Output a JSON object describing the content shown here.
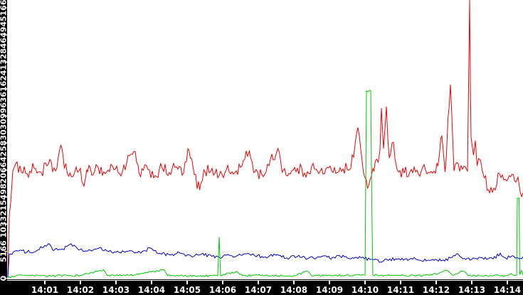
{
  "chart_data": {
    "type": "line",
    "title": "",
    "xlabel": "",
    "ylabel": "",
    "grid": false,
    "legend": "none",
    "x_ticks": [
      "14:01",
      "14:02",
      "14:03",
      "14:04",
      "14:05",
      "14:06",
      "14:07",
      "14:08",
      "14:09",
      "14:10",
      "14:11",
      "14:12",
      "14:13",
      "14:14"
    ],
    "y_ticks": [
      0,
      5166,
      10332,
      15498,
      20664,
      25830,
      30996,
      36162,
      41328,
      46494,
      51661
    ],
    "y_max": 51661,
    "x_range_minutes_after_1400": [
      -0.04,
      14.44
    ],
    "colors": {
      "window_background": "#000000",
      "plot_background": "#ffffff",
      "axis_line": "#000000",
      "tick_mark": "#ffffff",
      "tick_label": "#ffffff",
      "series_red": "#f00000",
      "series_blue": "#0000d0",
      "series_green": "#00c800"
    },
    "series": [
      {
        "name": "red-series",
        "color": "#f00000",
        "noise": 1200,
        "points": [
          [
            -0.04,
            300
          ],
          [
            0.0,
            12000
          ],
          [
            0.1,
            20500
          ],
          [
            0.3,
            21500
          ],
          [
            0.5,
            20000
          ],
          [
            0.7,
            21000
          ],
          [
            0.9,
            20200
          ],
          [
            1.1,
            21800
          ],
          [
            1.3,
            20500
          ],
          [
            1.45,
            25400
          ],
          [
            1.55,
            21000
          ],
          [
            1.8,
            19500
          ],
          [
            2.0,
            21000
          ],
          [
            2.1,
            17600
          ],
          [
            2.2,
            20300
          ],
          [
            2.5,
            21200
          ],
          [
            2.7,
            20000
          ],
          [
            2.9,
            21500
          ],
          [
            3.1,
            20000
          ],
          [
            3.3,
            22000
          ],
          [
            3.5,
            24200
          ],
          [
            3.65,
            20000
          ],
          [
            3.9,
            20800
          ],
          [
            4.1,
            19600
          ],
          [
            4.3,
            21000
          ],
          [
            4.5,
            20200
          ],
          [
            4.7,
            21300
          ],
          [
            4.9,
            20100
          ],
          [
            5.05,
            24500
          ],
          [
            5.2,
            19800
          ],
          [
            5.35,
            16900
          ],
          [
            5.5,
            20400
          ],
          [
            5.7,
            21000
          ],
          [
            5.9,
            19600
          ],
          [
            6.1,
            20700
          ],
          [
            6.3,
            19900
          ],
          [
            6.5,
            21200
          ],
          [
            6.75,
            24300
          ],
          [
            6.9,
            20300
          ],
          [
            7.1,
            19800
          ],
          [
            7.3,
            21500
          ],
          [
            7.55,
            24800
          ],
          [
            7.7,
            20600
          ],
          [
            7.9,
            19900
          ],
          [
            8.1,
            21000
          ],
          [
            8.3,
            20100
          ],
          [
            8.5,
            21400
          ],
          [
            8.7,
            20000
          ],
          [
            8.9,
            20900
          ],
          [
            9.1,
            20200
          ],
          [
            9.3,
            21100
          ],
          [
            9.6,
            21000
          ],
          [
            9.8,
            28800
          ],
          [
            9.95,
            20500
          ],
          [
            10.1,
            17600
          ],
          [
            10.25,
            20500
          ],
          [
            10.42,
            24500
          ],
          [
            10.46,
            32500
          ],
          [
            10.52,
            24800
          ],
          [
            10.6,
            32800
          ],
          [
            10.68,
            23000
          ],
          [
            10.8,
            26000
          ],
          [
            10.9,
            20800
          ],
          [
            11.1,
            20100
          ],
          [
            11.3,
            20800
          ],
          [
            11.5,
            19900
          ],
          [
            11.7,
            20700
          ],
          [
            11.9,
            20100
          ],
          [
            12.05,
            21500
          ],
          [
            12.16,
            27200
          ],
          [
            12.25,
            20300
          ],
          [
            12.4,
            37000
          ],
          [
            12.5,
            20500
          ],
          [
            12.7,
            21500
          ],
          [
            12.88,
            20400
          ],
          [
            12.94,
            53200
          ],
          [
            12.96,
            37500
          ],
          [
            12.98,
            27000
          ],
          [
            13.05,
            23500
          ],
          [
            13.1,
            26300
          ],
          [
            13.15,
            21500
          ],
          [
            13.25,
            22500
          ],
          [
            13.35,
            19200
          ],
          [
            13.5,
            16300
          ],
          [
            13.62,
            17200
          ],
          [
            13.78,
            20000
          ],
          [
            13.9,
            18800
          ],
          [
            14.05,
            19600
          ],
          [
            14.2,
            18700
          ],
          [
            14.3,
            19300
          ],
          [
            14.36,
            16500
          ],
          [
            14.44,
            16300
          ]
        ]
      },
      {
        "name": "blue-series",
        "color": "#0000d0",
        "noise": 330,
        "points": [
          [
            -0.04,
            200
          ],
          [
            0.0,
            4600
          ],
          [
            0.2,
            5300
          ],
          [
            0.5,
            5000
          ],
          [
            0.8,
            5400
          ],
          [
            1.1,
            6600
          ],
          [
            1.25,
            5300
          ],
          [
            1.5,
            5600
          ],
          [
            1.74,
            6600
          ],
          [
            1.95,
            5400
          ],
          [
            2.2,
            5200
          ],
          [
            2.5,
            5700
          ],
          [
            2.8,
            5100
          ],
          [
            3.1,
            4900
          ],
          [
            3.4,
            5300
          ],
          [
            3.7,
            4800
          ],
          [
            3.95,
            5800
          ],
          [
            4.2,
            4700
          ],
          [
            4.5,
            4500
          ],
          [
            4.8,
            4800
          ],
          [
            5.1,
            4300
          ],
          [
            5.4,
            4600
          ],
          [
            5.7,
            4200
          ],
          [
            5.9,
            4000
          ],
          [
            6.1,
            4400
          ],
          [
            6.35,
            4100
          ],
          [
            6.6,
            4700
          ],
          [
            6.9,
            4300
          ],
          [
            7.2,
            4100
          ],
          [
            7.5,
            4400
          ],
          [
            7.8,
            3900
          ],
          [
            8.1,
            4200
          ],
          [
            8.4,
            3800
          ],
          [
            8.7,
            4100
          ],
          [
            9.0,
            3900
          ],
          [
            9.3,
            4200
          ],
          [
            9.6,
            3700
          ],
          [
            9.9,
            3900
          ],
          [
            10.2,
            3600
          ],
          [
            10.45,
            3100
          ],
          [
            10.7,
            3700
          ],
          [
            11.0,
            3500
          ],
          [
            11.3,
            3800
          ],
          [
            11.6,
            3300
          ],
          [
            11.9,
            3600
          ],
          [
            12.2,
            3500
          ],
          [
            12.45,
            4000
          ],
          [
            12.6,
            4700
          ],
          [
            12.75,
            3700
          ],
          [
            13.0,
            3600
          ],
          [
            13.3,
            3900
          ],
          [
            13.6,
            3700
          ],
          [
            13.8,
            4800
          ],
          [
            13.95,
            3900
          ],
          [
            14.1,
            4100
          ],
          [
            14.25,
            3900
          ],
          [
            14.44,
            4100
          ]
        ]
      },
      {
        "name": "green-series",
        "color": "#00c800",
        "noise": 180,
        "points": [
          [
            -0.04,
            100
          ],
          [
            0.2,
            500
          ],
          [
            1.0,
            450
          ],
          [
            2.0,
            550
          ],
          [
            2.65,
            1600
          ],
          [
            2.75,
            500
          ],
          [
            3.5,
            600
          ],
          [
            4.35,
            1700
          ],
          [
            4.45,
            500
          ],
          [
            5.3,
            450
          ],
          [
            5.86,
            500
          ],
          [
            5.9,
            7900
          ],
          [
            5.94,
            500
          ],
          [
            6.4,
            1300
          ],
          [
            6.55,
            500
          ],
          [
            7.2,
            550
          ],
          [
            8.0,
            500
          ],
          [
            8.4,
            1300
          ],
          [
            8.5,
            500
          ],
          [
            9.2,
            550
          ],
          [
            10.0,
            600
          ],
          [
            10.04,
            35800
          ],
          [
            10.16,
            35800
          ],
          [
            10.19,
            14000
          ],
          [
            10.22,
            600
          ],
          [
            11.0,
            500
          ],
          [
            11.8,
            550
          ],
          [
            12.3,
            1500
          ],
          [
            12.45,
            600
          ],
          [
            12.75,
            1400
          ],
          [
            12.9,
            500
          ],
          [
            13.5,
            450
          ],
          [
            14.0,
            500
          ],
          [
            14.1,
            900
          ],
          [
            14.2,
            500
          ],
          [
            14.26,
            600
          ],
          [
            14.28,
            15300
          ],
          [
            14.33,
            15300
          ],
          [
            14.35,
            700
          ],
          [
            14.4,
            1500
          ],
          [
            14.44,
            600
          ]
        ]
      }
    ]
  }
}
